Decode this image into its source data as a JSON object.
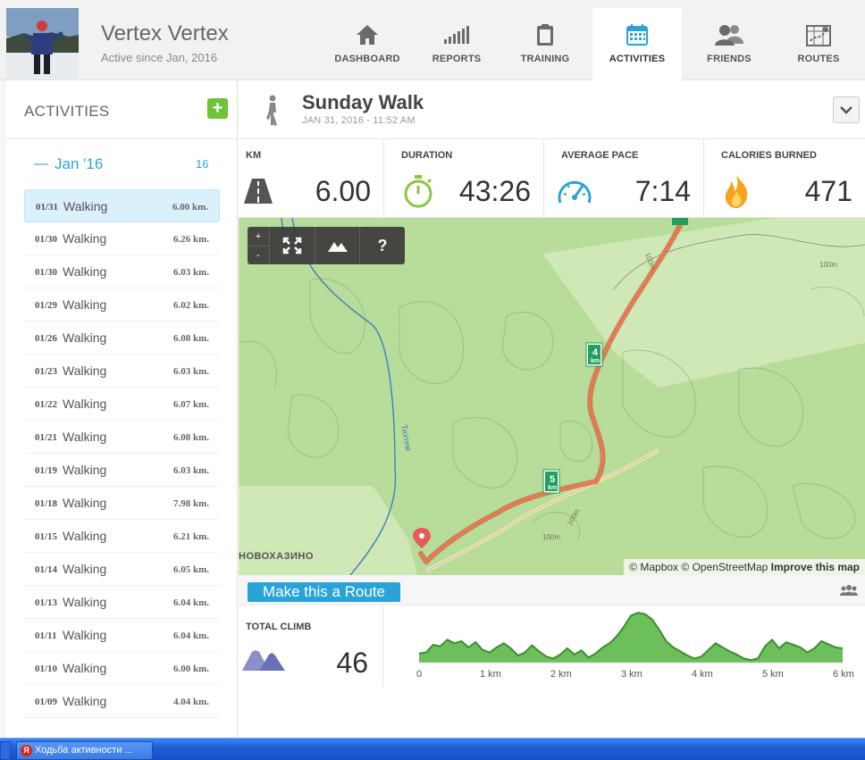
{
  "user": {
    "name": "Vertex Vertex",
    "subtitle": "Active since Jan, 2016"
  },
  "nav": [
    {
      "label": "DASHBOARD",
      "icon": "home-icon"
    },
    {
      "label": "REPORTS",
      "icon": "bar-chart-icon"
    },
    {
      "label": "TRAINING",
      "icon": "clipboard-icon"
    },
    {
      "label": "ACTIVITIES",
      "icon": "calendar-icon",
      "active": true
    },
    {
      "label": "FRIENDS",
      "icon": "people-icon"
    },
    {
      "label": "ROUTES",
      "icon": "map-route-icon"
    }
  ],
  "sidebar": {
    "title": "ACTIVITIES",
    "add_label": "+",
    "month": {
      "dash": "—",
      "label": "Jan '16",
      "count": "16"
    },
    "items": [
      {
        "date": "01/31",
        "type": "Walking",
        "km": "6.00 km.",
        "selected": true
      },
      {
        "date": "01/30",
        "type": "Walking",
        "km": "6.26 km."
      },
      {
        "date": "01/30",
        "type": "Walking",
        "km": "6.03 km."
      },
      {
        "date": "01/29",
        "type": "Walking",
        "km": "6.02 km."
      },
      {
        "date": "01/26",
        "type": "Walking",
        "km": "6.08 km."
      },
      {
        "date": "01/23",
        "type": "Walking",
        "km": "6.03 km."
      },
      {
        "date": "01/22",
        "type": "Walking",
        "km": "6.07 km."
      },
      {
        "date": "01/21",
        "type": "Walking",
        "km": "6.08 km."
      },
      {
        "date": "01/19",
        "type": "Walking",
        "km": "6.03 km."
      },
      {
        "date": "01/18",
        "type": "Walking",
        "km": "7.98 km."
      },
      {
        "date": "01/15",
        "type": "Walking",
        "km": "6.21 km."
      },
      {
        "date": "01/14",
        "type": "Walking",
        "km": "6.05 km."
      },
      {
        "date": "01/13",
        "type": "Walking",
        "km": "6.04 km."
      },
      {
        "date": "01/11",
        "type": "Walking",
        "km": "6.04 km."
      },
      {
        "date": "01/10",
        "type": "Walking",
        "km": "6.00 km."
      },
      {
        "date": "01/09",
        "type": "Walking",
        "km": "4.04 km."
      }
    ]
  },
  "activity": {
    "title": "Sunday Walk",
    "date": "JAN 31, 2016  -  11:52 AM",
    "icon": "walking-person-icon"
  },
  "stats": [
    {
      "label": "KM",
      "value": "6.00",
      "icon": "road-icon"
    },
    {
      "label": "DURATION",
      "value": "43:26",
      "icon": "stopwatch-icon"
    },
    {
      "label": "AVERAGE PACE",
      "value": "7:14",
      "icon": "speedometer-icon"
    },
    {
      "label": "CALORIES BURNED",
      "value": "471",
      "icon": "flame-icon"
    }
  ],
  "map": {
    "controls": {
      "zoom_in": "+",
      "zoom_out": "-",
      "fullscreen_icon": "fullscreen-icon",
      "terrain_icon": "mountain-icon",
      "help": "?"
    },
    "attribution": {
      "mapbox": "© Mapbox",
      "osm": "© OpenStreetMap",
      "improve": "Improve this map"
    },
    "place_label": "НОВОХАЗИНО",
    "river_label": "Тихтем",
    "contour_label": "100m",
    "km_markers": [
      "4",
      "5"
    ],
    "km_unit": "km"
  },
  "route_button": "Make this a Route",
  "climb": {
    "label": "TOTAL CLIMB",
    "value": "46",
    "icon": "mountains-icon"
  },
  "chart_data": {
    "type": "area",
    "title": "",
    "xlabel": "",
    "ylabel": "",
    "x_ticks": [
      "0",
      "1 km",
      "2 km",
      "3 km",
      "4 km",
      "5 km",
      "6 km"
    ],
    "xlim": [
      0,
      6
    ],
    "x": [
      0,
      0.1,
      0.2,
      0.3,
      0.4,
      0.5,
      0.6,
      0.7,
      0.8,
      0.9,
      1.0,
      1.1,
      1.2,
      1.3,
      1.4,
      1.5,
      1.6,
      1.7,
      1.8,
      1.9,
      2.0,
      2.1,
      2.2,
      2.3,
      2.4,
      2.5,
      2.6,
      2.7,
      2.8,
      2.9,
      3.0,
      3.1,
      3.2,
      3.3,
      3.4,
      3.5,
      3.6,
      3.7,
      3.8,
      3.9,
      4.0,
      4.1,
      4.2,
      4.3,
      4.4,
      4.5,
      4.6,
      4.7,
      4.8,
      4.9,
      5.0,
      5.1,
      5.2,
      5.3,
      5.4,
      5.5,
      5.6,
      5.7,
      5.8,
      5.9,
      6.0
    ],
    "y": [
      0.18,
      0.2,
      0.35,
      0.32,
      0.45,
      0.38,
      0.42,
      0.3,
      0.4,
      0.25,
      0.2,
      0.3,
      0.38,
      0.28,
      0.14,
      0.2,
      0.34,
      0.22,
      0.12,
      0.08,
      0.16,
      0.28,
      0.16,
      0.24,
      0.1,
      0.18,
      0.3,
      0.38,
      0.52,
      0.7,
      0.92,
      0.98,
      0.95,
      0.85,
      0.65,
      0.42,
      0.3,
      0.22,
      0.14,
      0.08,
      0.12,
      0.25,
      0.38,
      0.3,
      0.22,
      0.16,
      0.08,
      0.05,
      0.08,
      0.32,
      0.45,
      0.28,
      0.4,
      0.35,
      0.3,
      0.2,
      0.28,
      0.42,
      0.36,
      0.3,
      0.28
    ],
    "ylim": [
      0,
      1.05
    ],
    "grid": false,
    "fill_color": "#6cbf5a",
    "line_color": "#3a8f2e"
  },
  "taskbar": {
    "window_title": "Ходьба активности ..."
  },
  "colors": {
    "accent": "#2aa3d9",
    "add_green": "#6fc23a",
    "route": "#e06a4a",
    "map_green": "#b8dc9a"
  }
}
